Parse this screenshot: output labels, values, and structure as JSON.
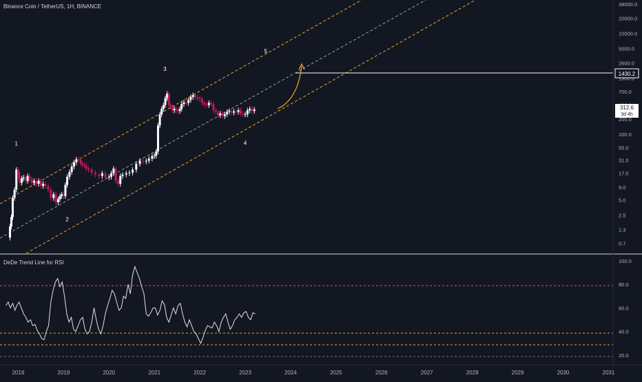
{
  "header": {
    "symbol_line": "Binance Coin / TetherUS, 1H, BINANCE"
  },
  "colors": {
    "background": "#131722",
    "text": "#d1d4dc",
    "axis_text": "#b2b5be",
    "candle_up": "#ffffff",
    "candle_down": "#c2185b",
    "channel_outer": "#f5a623",
    "channel_inner": "#9aa0ad",
    "projection_arc": "#f5a623",
    "target_line": "#ffffff",
    "rsi_line": "#e0e3eb",
    "rsi_upper": "#ef5350",
    "rsi_middle": "#f5a623",
    "rsi_lower": "#787b86",
    "last_price_tag_bg": "#ffffff",
    "last_price_tag_text": "#131722"
  },
  "price_axis": {
    "ticks": [
      "38000.0",
      "20000.0",
      "10000.0",
      "5000.0",
      "2600.0",
      "1300.0",
      "700.0",
      "380.0",
      "200.0",
      "100.0",
      "55.0",
      "31.0",
      "17.0",
      "9.0",
      "5.0",
      "2.5",
      "1.3",
      "0.7"
    ],
    "target_label": "1430.2",
    "last_price_label": "312.6",
    "countdown_label": "3d 4h"
  },
  "rsi_axis": {
    "ticks": [
      "100.0",
      "80.0",
      "60.0",
      "40.0",
      "20.0"
    ]
  },
  "time_axis": {
    "ticks": [
      "2018",
      "2019",
      "2020",
      "2021",
      "2022",
      "2023",
      "2024",
      "2025",
      "2026",
      "2027",
      "2028",
      "2029",
      "2030",
      "2031"
    ]
  },
  "wave_labels": [
    "1",
    "2",
    "3",
    "4",
    "5"
  ],
  "indicator": {
    "title": "DeDe Trend Line for RSI"
  },
  "chart_data": [
    {
      "type": "candlestick",
      "title": "Binance Coin / TetherUS, 1H, BINANCE",
      "y_scale": "log",
      "ylim": [
        0.5,
        38000
      ],
      "xlim": [
        2017.6,
        2031.1
      ],
      "x_units": "year",
      "series": [
        {
          "x": [
            2017.82,
            2017.85,
            2017.88,
            2017.92,
            2017.96,
            2018.0,
            2018.02,
            2018.04,
            2018.08,
            2018.12,
            2018.17,
            2018.21,
            2018.25,
            2018.3,
            2018.35,
            2018.4,
            2018.45,
            2018.5,
            2018.55,
            2018.6,
            2018.66,
            2018.72,
            2018.78,
            2018.83,
            2018.88,
            2018.92,
            2018.96,
            2019.0,
            2019.04,
            2019.08,
            2019.13,
            2019.18,
            2019.23,
            2019.28,
            2019.33,
            2019.38,
            2019.42,
            2019.46,
            2019.5,
            2019.55,
            2019.62,
            2019.7,
            2019.78,
            2019.85,
            2019.92,
            2020.0,
            2020.05,
            2020.1,
            2020.15,
            2020.2,
            2020.25,
            2020.3,
            2020.38,
            2020.45,
            2020.52,
            2020.6,
            2020.68,
            2020.75,
            2020.82,
            2020.88,
            2020.95,
            2021.0,
            2021.04,
            2021.08,
            2021.12,
            2021.16,
            2021.2,
            2021.24,
            2021.28,
            2021.32,
            2021.36,
            2021.4,
            2021.44,
            2021.48,
            2021.52,
            2021.56,
            2021.6,
            2021.65,
            2021.7,
            2021.75,
            2021.8,
            2021.85,
            2021.9,
            2021.95,
            2022.0,
            2022.05,
            2022.1,
            2022.15,
            2022.2,
            2022.25,
            2022.3,
            2022.35,
            2022.4,
            2022.45,
            2022.5,
            2022.55,
            2022.6,
            2022.65,
            2022.7,
            2022.75,
            2022.8,
            2022.85,
            2022.9,
            2022.95,
            2023.0,
            2023.05,
            2023.1,
            2023.15,
            2023.2
          ],
          "close": [
            1.5,
            2.3,
            5.5,
            8.0,
            20.0,
            18.0,
            13.0,
            11.0,
            13.5,
            14.0,
            12.0,
            15.0,
            13.0,
            11.0,
            12.0,
            10.5,
            12.0,
            9.5,
            10.5,
            9.5,
            8.0,
            5.5,
            6.5,
            4.5,
            5.2,
            6.0,
            6.5,
            6.0,
            10.0,
            14.5,
            18.0,
            23.0,
            28.0,
            32.0,
            31.0,
            26.0,
            25.0,
            24.0,
            21.0,
            20.0,
            17.5,
            16.0,
            15.0,
            17.0,
            14.0,
            14.5,
            17.0,
            21.0,
            12.0,
            10.5,
            15.0,
            16.0,
            17.0,
            17.5,
            20.0,
            26.0,
            30.0,
            29.0,
            30.0,
            33.0,
            37.0,
            38.0,
            46.0,
            150.0,
            250.0,
            320.0,
            380.0,
            520.0,
            640.0,
            380.0,
            350.0,
            300.0,
            320.0,
            300.0,
            290.0,
            320.0,
            400.0,
            430.0,
            420.0,
            480.0,
            550.0,
            600.0,
            550.0,
            520.0,
            500.0,
            420.0,
            390.0,
            380.0,
            420.0,
            400.0,
            300.0,
            280.0,
            240.0,
            260.0,
            230.0,
            250.0,
            280.0,
            290.0,
            270.0,
            285.0,
            280.0,
            300.0,
            260.0,
            250.0,
            250.0,
            300.0,
            320.0,
            290.0,
            312.6
          ]
        }
      ],
      "target_level": 1430.2,
      "last_price": 312.6,
      "wave_points": [
        {
          "label": "1",
          "x": 2017.96,
          "y": 60
        },
        {
          "label": "2",
          "x": 2019.08,
          "y": 1.9
        },
        {
          "label": "3",
          "x": 2021.23,
          "y": 1800
        },
        {
          "label": "4",
          "x": 2023.0,
          "y": 62
        },
        {
          "label": "5",
          "x": 2023.45,
          "y": 4100
        }
      ]
    },
    {
      "type": "line",
      "title": "DeDe Trend Line for RSI",
      "ylim": [
        13,
        104
      ],
      "xlim": [
        2017.6,
        2031.1
      ],
      "x_units": "year",
      "levels": [
        80,
        40,
        30,
        20
      ],
      "series": [
        {
          "x": [
            2017.73,
            2017.78,
            2017.83,
            2017.88,
            2017.93,
            2017.97,
            2018.02,
            2018.07,
            2018.12,
            2018.17,
            2018.22,
            2018.27,
            2018.32,
            2018.37,
            2018.42,
            2018.47,
            2018.52,
            2018.57,
            2018.62,
            2018.67,
            2018.72,
            2018.77,
            2018.82,
            2018.87,
            2018.92,
            2018.97,
            2019.02,
            2019.07,
            2019.12,
            2019.17,
            2019.22,
            2019.27,
            2019.32,
            2019.37,
            2019.42,
            2019.47,
            2019.52,
            2019.57,
            2019.62,
            2019.67,
            2019.72,
            2019.77,
            2019.82,
            2019.87,
            2019.92,
            2019.97,
            2020.02,
            2020.07,
            2020.12,
            2020.17,
            2020.22,
            2020.27,
            2020.32,
            2020.37,
            2020.42,
            2020.47,
            2020.52,
            2020.57,
            2020.62,
            2020.67,
            2020.72,
            2020.77,
            2020.82,
            2020.87,
            2020.92,
            2020.97,
            2021.02,
            2021.07,
            2021.12,
            2021.17,
            2021.22,
            2021.27,
            2021.32,
            2021.37,
            2021.42,
            2021.47,
            2021.52,
            2021.57,
            2021.62,
            2021.67,
            2021.72,
            2021.77,
            2021.82,
            2021.87,
            2021.92,
            2021.97,
            2022.02,
            2022.07,
            2022.12,
            2022.17,
            2022.22,
            2022.27,
            2022.32,
            2022.37,
            2022.42,
            2022.47,
            2022.52,
            2022.57,
            2022.62,
            2022.67,
            2022.72,
            2022.77,
            2022.82,
            2022.87,
            2022.92,
            2022.97,
            2023.02,
            2023.07,
            2023.12,
            2023.17,
            2023.22
          ],
          "values": [
            62,
            65,
            60,
            64,
            58,
            62,
            65,
            60,
            55,
            52,
            48,
            50,
            45,
            46,
            41,
            38,
            34,
            33,
            40,
            45,
            65,
            75,
            82,
            85,
            78,
            82,
            70,
            55,
            48,
            52,
            42,
            40,
            45,
            50,
            52,
            42,
            38,
            40,
            48,
            60,
            50,
            42,
            38,
            45,
            55,
            62,
            68,
            75,
            72,
            65,
            58,
            60,
            70,
            68,
            80,
            72,
            88,
            95,
            90,
            85,
            78,
            72,
            55,
            53,
            56,
            60,
            60,
            54,
            58,
            66,
            63,
            52,
            48,
            54,
            60,
            55,
            62,
            64,
            55,
            48,
            44,
            50,
            45,
            40,
            38,
            34,
            30,
            35,
            41,
            45,
            44,
            43,
            48,
            45,
            40,
            48,
            52,
            55,
            48,
            42,
            45,
            50,
            52,
            55,
            52,
            56,
            57,
            52,
            50,
            56,
            55
          ]
        }
      ]
    }
  ]
}
